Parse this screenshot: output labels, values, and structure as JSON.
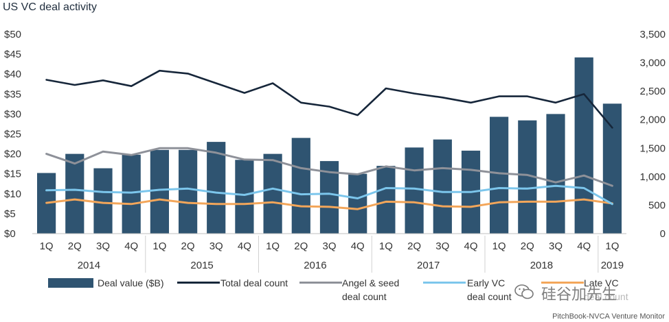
{
  "chart_data": {
    "type": "bar",
    "title": "US VC deal activity",
    "categories": [
      "1Q",
      "2Q",
      "3Q",
      "4Q",
      "1Q",
      "2Q",
      "3Q",
      "4Q",
      "1Q",
      "2Q",
      "3Q",
      "4Q",
      "1Q",
      "2Q",
      "3Q",
      "4Q",
      "1Q",
      "2Q",
      "3Q",
      "4Q",
      "1Q"
    ],
    "years": [
      {
        "label": "2014",
        "start": 0,
        "end": 3
      },
      {
        "label": "2015",
        "start": 4,
        "end": 7
      },
      {
        "label": "2016",
        "start": 8,
        "end": 11
      },
      {
        "label": "2017",
        "start": 12,
        "end": 15
      },
      {
        "label": "2018",
        "start": 16,
        "end": 19
      },
      {
        "label": "2019",
        "start": 20,
        "end": 20
      }
    ],
    "y_left": {
      "ticks": [
        "$0",
        "$5",
        "$10",
        "$15",
        "$20",
        "$25",
        "$30",
        "$35",
        "$40",
        "$45",
        "$50"
      ],
      "lim": [
        0,
        50
      ]
    },
    "y_right": {
      "ticks": [
        "0",
        "500",
        "1,000",
        "1,500",
        "2,000",
        "2,500",
        "3,000",
        "3,500"
      ],
      "lim": [
        0,
        3500
      ]
    },
    "series": [
      {
        "name": "Deal value ($B)",
        "kind": "bar",
        "axis": "left",
        "color": "#2f5471",
        "values": [
          15.2,
          20.0,
          16.4,
          19.8,
          21.0,
          21.0,
          23.0,
          18.5,
          20.0,
          24.0,
          18.2,
          15.0,
          17.0,
          21.6,
          23.6,
          20.8,
          29.3,
          28.4,
          30.0,
          44.2,
          32.6
        ]
      },
      {
        "name": "Total deal count",
        "kind": "line",
        "axis": "right",
        "color": "#16263a",
        "values": [
          2700,
          2610,
          2690,
          2590,
          2860,
          2810,
          2640,
          2470,
          2640,
          2300,
          2230,
          2080,
          2550,
          2460,
          2390,
          2300,
          2410,
          2410,
          2300,
          2450,
          1860
        ]
      },
      {
        "name": "Angel & seed deal count",
        "kind": "line",
        "axis": "right",
        "color": "#8e9199",
        "values": [
          1400,
          1230,
          1440,
          1380,
          1500,
          1500,
          1420,
          1300,
          1290,
          1150,
          1080,
          1040,
          1180,
          1110,
          1150,
          1120,
          1060,
          1030,
          900,
          1020,
          840
        ]
      },
      {
        "name": "Early VC deal count",
        "kind": "line",
        "axis": "right",
        "color": "#7cc6ec",
        "values": [
          760,
          770,
          730,
          720,
          770,
          790,
          720,
          680,
          790,
          690,
          700,
          620,
          800,
          790,
          730,
          730,
          800,
          790,
          840,
          800,
          520
        ]
      },
      {
        "name": "Late VC deal count",
        "kind": "line",
        "axis": "right",
        "color": "#f3a65a",
        "values": [
          540,
          600,
          540,
          520,
          600,
          540,
          520,
          520,
          550,
          480,
          470,
          430,
          560,
          550,
          480,
          470,
          550,
          560,
          560,
          600,
          530
        ]
      }
    ],
    "grid": false,
    "legend_position": "bottom"
  },
  "legend": {
    "deal_value": "Deal value ($B)",
    "total": "Total deal count",
    "angel_line1": "Angel & seed",
    "angel_line2": "deal count",
    "early_line1": "Early VC",
    "early_line2": "deal count",
    "late_line1": "Late VC",
    "late_line2": "deal count"
  },
  "source": "PitchBook-NVCA Venture Monitor",
  "watermark": "硅谷加先生"
}
